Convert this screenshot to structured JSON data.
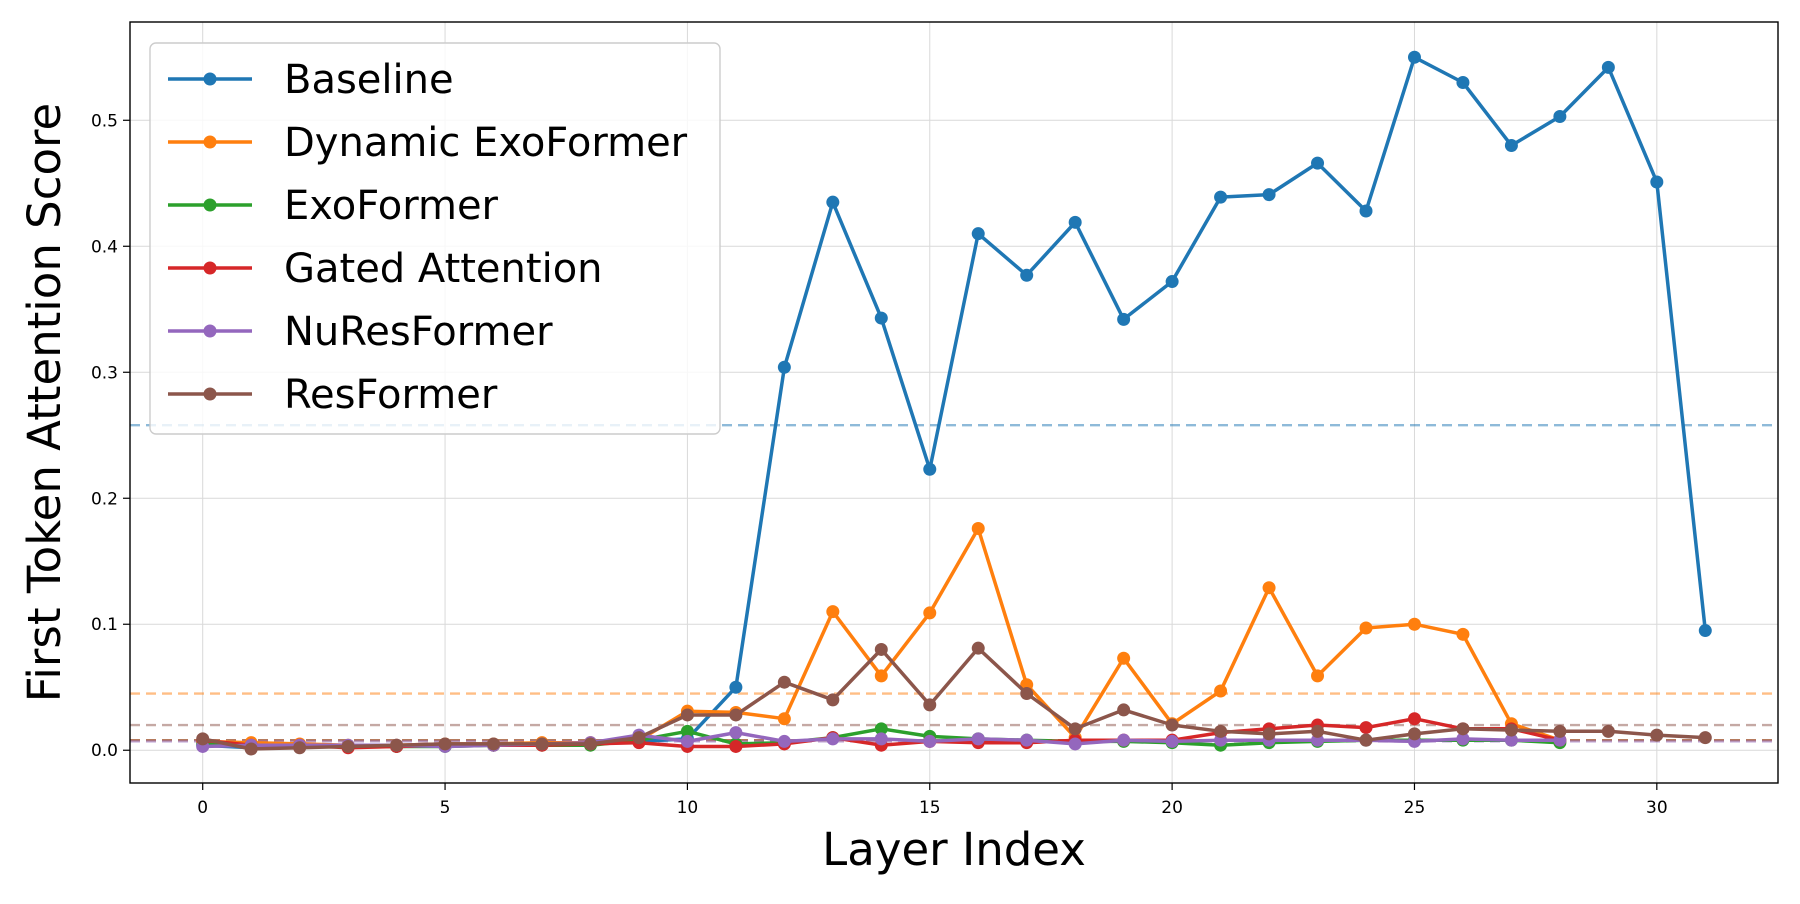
{
  "chart_data": {
    "type": "line",
    "title": "",
    "xlabel": "Layer Index",
    "ylabel": "First Token Attention Score",
    "xlim": [
      -1.5,
      32.5
    ],
    "ylim": [
      -0.026,
      0.578
    ],
    "xticks": [
      0,
      5,
      10,
      15,
      20,
      25,
      30
    ],
    "xtick_labels": [
      "0",
      "5",
      "10",
      "15",
      "20",
      "25",
      "30"
    ],
    "yticks": [
      0.0,
      0.1,
      0.2,
      0.3,
      0.4,
      0.5
    ],
    "ytick_labels": [
      "0.0",
      "0.1",
      "0.2",
      "0.3",
      "0.4",
      "0.5"
    ],
    "grid": true,
    "legend_position": "top-left",
    "series": [
      {
        "name": "Baseline",
        "color": "#1f77b4",
        "x": [
          0,
          1,
          2,
          3,
          4,
          5,
          6,
          7,
          8,
          9,
          10,
          11,
          12,
          13,
          14,
          15,
          16,
          17,
          18,
          19,
          20,
          21,
          22,
          23,
          24,
          25,
          26,
          27,
          28,
          29,
          30,
          31
        ],
        "values": [
          0.004,
          0.002,
          0.003,
          0.003,
          0.003,
          0.004,
          0.004,
          0.005,
          0.005,
          0.007,
          0.009,
          0.05,
          0.304,
          0.435,
          0.343,
          0.223,
          0.41,
          0.377,
          0.419,
          0.342,
          0.372,
          0.439,
          0.441,
          0.466,
          0.428,
          0.55,
          0.53,
          0.48,
          0.503,
          0.542,
          0.451,
          0.095
        ]
      },
      {
        "name": "Dynamic ExoFormer",
        "color": "#ff7f0e",
        "x": [
          0,
          1,
          2,
          3,
          4,
          5,
          6,
          7,
          8,
          9,
          10,
          11,
          12,
          13,
          14,
          15,
          16,
          17,
          18,
          19,
          20,
          21,
          22,
          23,
          24,
          25,
          26,
          27,
          28
        ],
        "values": [
          0.007,
          0.006,
          0.005,
          0.004,
          0.004,
          0.005,
          0.005,
          0.006,
          0.006,
          0.008,
          0.031,
          0.03,
          0.025,
          0.11,
          0.059,
          0.109,
          0.176,
          0.052,
          0.01,
          0.073,
          0.021,
          0.047,
          0.129,
          0.059,
          0.097,
          0.1,
          0.092,
          0.021,
          0.008
        ]
      },
      {
        "name": "ExoFormer",
        "color": "#2ca02c",
        "x": [
          0,
          1,
          2,
          3,
          4,
          5,
          6,
          7,
          8,
          9,
          10,
          11,
          12,
          13,
          14,
          15,
          16,
          17,
          18,
          19,
          20,
          21,
          22,
          23,
          24,
          25,
          26,
          27,
          28
        ],
        "values": [
          0.005,
          0.003,
          0.003,
          0.003,
          0.003,
          0.003,
          0.004,
          0.004,
          0.004,
          0.008,
          0.015,
          0.005,
          0.006,
          0.01,
          0.017,
          0.011,
          0.009,
          0.008,
          0.007,
          0.007,
          0.006,
          0.004,
          0.006,
          0.007,
          0.008,
          0.008,
          0.008,
          0.008,
          0.006
        ]
      },
      {
        "name": "Gated Attention",
        "color": "#d62728",
        "x": [
          0,
          1,
          2,
          3,
          4,
          5,
          6,
          7,
          8,
          9,
          10,
          11,
          12,
          13,
          14,
          15,
          16,
          17,
          18,
          19,
          20,
          21,
          22,
          23,
          24,
          25,
          26,
          27,
          28
        ],
        "values": [
          0.008,
          0.004,
          0.004,
          0.002,
          0.003,
          0.004,
          0.004,
          0.004,
          0.005,
          0.006,
          0.003,
          0.003,
          0.005,
          0.01,
          0.004,
          0.007,
          0.006,
          0.006,
          0.008,
          0.008,
          0.008,
          0.014,
          0.017,
          0.02,
          0.018,
          0.025,
          0.017,
          0.017,
          0.008
        ]
      },
      {
        "name": "NuResFormer",
        "color": "#9467bd",
        "x": [
          0,
          1,
          2,
          3,
          4,
          5,
          6,
          7,
          8,
          9,
          10,
          11,
          12,
          13,
          14,
          15,
          16,
          17,
          18,
          19,
          20,
          21,
          22,
          23,
          24,
          25,
          26,
          27,
          28
        ],
        "values": [
          0.003,
          0.004,
          0.004,
          0.004,
          0.004,
          0.003,
          0.004,
          0.005,
          0.006,
          0.012,
          0.007,
          0.014,
          0.007,
          0.009,
          0.009,
          0.007,
          0.009,
          0.008,
          0.005,
          0.008,
          0.007,
          0.008,
          0.008,
          0.008,
          0.008,
          0.007,
          0.009,
          0.008,
          0.008
        ]
      },
      {
        "name": "ResFormer",
        "color": "#8c564b",
        "x": [
          0,
          1,
          2,
          3,
          4,
          5,
          6,
          7,
          8,
          9,
          10,
          11,
          12,
          13,
          14,
          15,
          16,
          17,
          18,
          19,
          20,
          21,
          22,
          23,
          24,
          25,
          26,
          27,
          28,
          29,
          30,
          31
        ],
        "values": [
          0.009,
          0.001,
          0.002,
          0.003,
          0.004,
          0.005,
          0.005,
          0.005,
          0.005,
          0.01,
          0.028,
          0.028,
          0.054,
          0.04,
          0.08,
          0.036,
          0.081,
          0.045,
          0.017,
          0.032,
          0.02,
          0.015,
          0.013,
          0.015,
          0.008,
          0.013,
          0.017,
          0.016,
          0.015,
          0.015,
          0.012,
          0.01
        ]
      }
    ],
    "reference_lines": [
      {
        "series": "Baseline",
        "y": 0.258,
        "color": "#1f77b4"
      },
      {
        "series": "Dynamic ExoFormer",
        "y": 0.045,
        "color": "#ff7f0e"
      },
      {
        "series": "ResFormer",
        "y": 0.02,
        "color": "#8c564b"
      },
      {
        "series": "ExoFormer",
        "y": 0.008,
        "color": "#2ca02c"
      },
      {
        "series": "Gated Attention",
        "y": 0.008,
        "color": "#d62728"
      },
      {
        "series": "NuResFormer",
        "y": 0.007,
        "color": "#9467bd"
      }
    ]
  }
}
